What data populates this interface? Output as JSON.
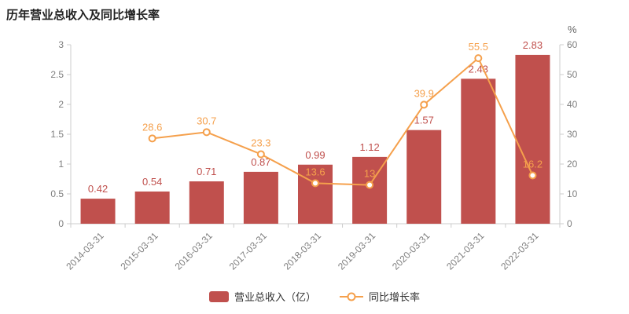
{
  "title": "历年营业总收入及同比增长率",
  "legend": [
    {
      "label": "营业总收入（亿）",
      "type": "bar",
      "color": "#c0504d"
    },
    {
      "label": "同比增长率",
      "type": "line",
      "color": "#f5a04c"
    }
  ],
  "colors": {
    "bar": "#c0504d",
    "line": "#f5a04c",
    "axis_line": "#cccccc",
    "axis_text": "#7f7f7f",
    "unit_text": "#666666"
  },
  "chart_data": {
    "type": "bar+line",
    "title": "历年营业总收入及同比增长率",
    "categories": [
      "2014-03-31",
      "2015-03-31",
      "2016-03-31",
      "2017-03-31",
      "2018-03-31",
      "2019-03-31",
      "2020-03-31",
      "2021-03-31",
      "2022-03-31"
    ],
    "series": [
      {
        "name": "营业总收入（亿）",
        "type": "bar",
        "axis": "left",
        "color": "#c0504d",
        "values": [
          0.42,
          0.54,
          0.71,
          0.87,
          0.99,
          1.12,
          1.57,
          2.43,
          2.83
        ]
      },
      {
        "name": "同比增长率",
        "type": "line",
        "axis": "right",
        "color": "#f5a04c",
        "values": [
          null,
          28.6,
          30.7,
          23.3,
          13.6,
          13,
          39.9,
          55.5,
          16.2
        ]
      }
    ],
    "left_axis": {
      "min": 0,
      "max": 3,
      "ticks": [
        0,
        0.5,
        1,
        1.5,
        2,
        2.5,
        3
      ],
      "unit": ""
    },
    "right_axis": {
      "min": 0,
      "max": 60,
      "ticks": [
        0,
        10,
        20,
        30,
        40,
        50,
        60
      ],
      "unit": "%"
    },
    "grid": false,
    "legend_position": "bottom"
  }
}
